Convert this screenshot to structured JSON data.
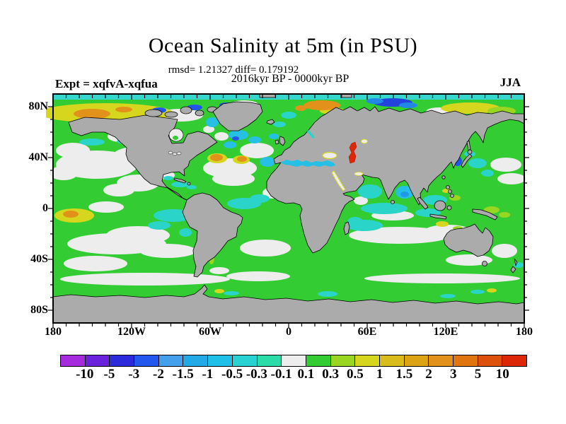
{
  "header": {
    "title": "Ocean Salinity at 5m (in PSU)",
    "stats_line": "rmsd= 1.21327 diff= 0.179192",
    "period_line": "2016kyr BP - 0000kyr BP",
    "experiment_label": "Expt = xqfvA-xqfua",
    "season_label": "JJA"
  },
  "map": {
    "y_axis_labels": [
      "80N",
      "40N",
      "0",
      "40S",
      "80S"
    ],
    "x_axis_labels": [
      "180",
      "120W",
      "60W",
      "0",
      "60E",
      "120E",
      "180"
    ],
    "land_color": "#ABABAB",
    "coastline_color": "#000000",
    "frame_color": "#000000",
    "background_color": "#FFFFFF"
  },
  "colorbar": {
    "labels": [
      "-10",
      "-5",
      "-3",
      "-2",
      "-1.5",
      "-1",
      "-0.5",
      "-0.3",
      "-0.1",
      "0.1",
      "0.3",
      "0.5",
      "1",
      "1.5",
      "2",
      "3",
      "5",
      "10"
    ],
    "colors": [
      "#A62BDE",
      "#6A22DC",
      "#2B2BDC",
      "#2457EE",
      "#44A0EC",
      "#22AAE6",
      "#1FC0E8",
      "#29D2D2",
      "#2BDCA8",
      "#EDEDED",
      "#33CC33",
      "#99D622",
      "#D6D61F",
      "#D8BC1C",
      "#DCA414",
      "#E2921A",
      "#E0740F",
      "#DC500C",
      "#DC2808"
    ]
  },
  "chart_data": {
    "type": "heatmap",
    "title": "Ocean Salinity at 5m (in PSU)",
    "subtitle": "2016kyr BP - 0000kyr BP",
    "experiment": "xqfvA-xqfua",
    "season": "JJA",
    "units": "PSU",
    "depth": "5m",
    "rmsd": 1.21327,
    "diff": 0.179192,
    "projection": "equirectangular world map, lon -180..180, lat -90..90",
    "x_tick_labels": [
      "180",
      "120W",
      "60W",
      "0",
      "60E",
      "120E",
      "180"
    ],
    "y_tick_labels": [
      "80N",
      "40N",
      "0",
      "40S",
      "80S"
    ],
    "x_major_tick_deg": 60,
    "x_minor_tick_deg": 10,
    "y_major_tick_deg": 40,
    "y_minor_tick_deg": 10,
    "contour_levels": [
      -10,
      -5,
      -3,
      -2,
      -1.5,
      -1,
      -0.5,
      -0.3,
      -0.1,
      0.1,
      0.3,
      0.5,
      1,
      1.5,
      2,
      3,
      5,
      10
    ],
    "palette": [
      "#A62BDE",
      "#6A22DC",
      "#2B2BDC",
      "#2457EE",
      "#44A0EC",
      "#22AAE6",
      "#1FC0E8",
      "#29D2D2",
      "#2BDCA8",
      "#EDEDED",
      "#33CC33",
      "#99D622",
      "#D6D61F",
      "#D8BC1C",
      "#DCA414",
      "#E2921A",
      "#E0740F",
      "#DC500C",
      "#DC2808"
    ],
    "land_color": "#ABABAB",
    "legend_position": "bottom",
    "grid": false,
    "notable_features": [
      "Caspian Sea: strong positive anomaly > +10 PSU (red)",
      "Bering/Chukchi shelf and Siberian Arctic coast: +0.5 to +3 PSU (yellow/orange patches)",
      "Barents/Kara/Laptev seas: mixed +2 orange and -2 to -5 blue patches",
      "Sea of Japan and Bay of Bengal cores: -2 to -3 PSU (blue)",
      "Highest-latitude Arctic band (85-90N): about -0.5 PSU (cyan strip)",
      "Most mid-latitude ocean: +0.1 to +0.3 PSU (green) with near-zero (white) subtropical gyres",
      "Tropical Indian Ocean, eastern equatorial Pacific, NW Atlantic: -0.1 to -1 PSU (cyan)",
      "Equatorial central Pacific and NW Atlantic spots: +1 to +3 PSU (yellow/orange)",
      "Antarctica and continents masked in gray"
    ]
  }
}
